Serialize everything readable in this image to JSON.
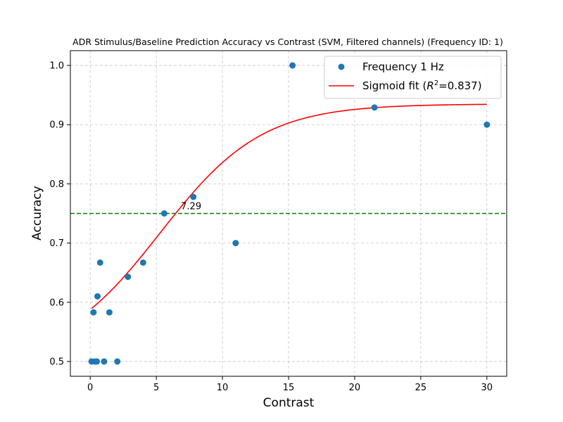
{
  "chart_data": {
    "type": "scatter",
    "title": "ADR Stimulus/Baseline Prediction Accuracy vs Contrast (SVM, Filtered channels) (Frequency ID: 1)",
    "xlabel": "Contrast",
    "ylabel": "Accuracy",
    "xlim": [
      -1.5,
      31.5
    ],
    "ylim": [
      0.475,
      1.025
    ],
    "xticks": [
      0,
      5,
      10,
      15,
      20,
      25,
      30
    ],
    "yticks": [
      0.5,
      0.6,
      0.7,
      0.8,
      0.9,
      1.0
    ],
    "ytick_labels": [
      "0.5",
      "0.6",
      "0.7",
      "0.8",
      "0.9",
      "1.0"
    ],
    "grid": true,
    "legend_position": "top-right",
    "series": [
      {
        "name": "Frequency 1 Hz",
        "kind": "scatter",
        "color": "#1f77b4",
        "points": [
          [
            0.1,
            0.5
          ],
          [
            0.25,
            0.583
          ],
          [
            0.35,
            0.5
          ],
          [
            0.5,
            0.5
          ],
          [
            0.55,
            0.61
          ],
          [
            0.75,
            0.667
          ],
          [
            1.05,
            0.5
          ],
          [
            1.45,
            0.583
          ],
          [
            2.05,
            0.5
          ],
          [
            2.85,
            0.643
          ],
          [
            4.0,
            0.667
          ],
          [
            5.6,
            0.75
          ],
          [
            7.8,
            0.778
          ],
          [
            11.0,
            0.7
          ],
          [
            15.3,
            1.0
          ],
          [
            21.5,
            0.929
          ],
          [
            30.0,
            0.9
          ]
        ]
      },
      {
        "name": "Sigmoid fit ($R^2$=0.837)",
        "legend_main": "Sigmoid fit (",
        "legend_r": "R",
        "legend_sup": "2",
        "legend_tail": "=0.837)",
        "kind": "line",
        "color": "#ff0000",
        "fit": {
          "lower": 0.5,
          "upper": 0.935,
          "midpoint": 5.3,
          "slope": 0.26,
          "x_start": 0.1,
          "x_end": 30.0
        }
      }
    ],
    "threshold": {
      "y": 0.75,
      "color": "#008000",
      "style": "dashed"
    },
    "annotations": [
      {
        "text": "7.29",
        "x": 7.29,
        "y": 0.75
      }
    ]
  }
}
